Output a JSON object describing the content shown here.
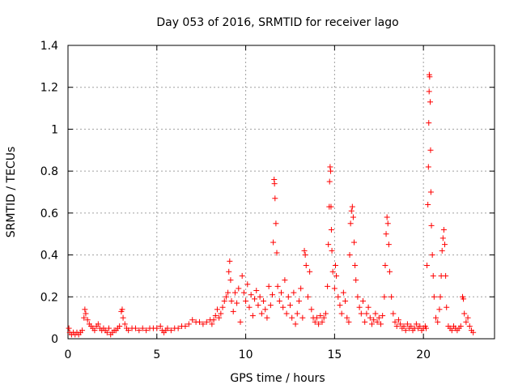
{
  "chart_data": {
    "type": "scatter",
    "title": "Day 053 of 2016, SRMTID for receiver lago",
    "xlabel": "GPS time / hours",
    "ylabel": "SRMTID / TECUs",
    "xlim": [
      0,
      24
    ],
    "ylim": [
      0,
      1.4
    ],
    "x_ticks": [
      0,
      5,
      10,
      15,
      20
    ],
    "x_tick_labels": [
      "0",
      "5",
      "10",
      "15",
      "20"
    ],
    "y_ticks": [
      0,
      0.2,
      0.4,
      0.6,
      0.8,
      1.0,
      1.2,
      1.4
    ],
    "y_tick_labels": [
      "0",
      "0.2",
      "0.4",
      "0.6",
      "0.8",
      "1",
      "1.2",
      "1.4"
    ],
    "grid": true,
    "marker": "+",
    "series_color": "#ff0000",
    "series": [
      {
        "name": "SRMTID",
        "points": [
          [
            0.05,
            0.05
          ],
          [
            0.1,
            0.03
          ],
          [
            0.2,
            0.02
          ],
          [
            0.3,
            0.03
          ],
          [
            0.4,
            0.02
          ],
          [
            0.5,
            0.03
          ],
          [
            0.6,
            0.02
          ],
          [
            0.7,
            0.03
          ],
          [
            0.8,
            0.04
          ],
          [
            0.9,
            0.1
          ],
          [
            0.95,
            0.14
          ],
          [
            1.0,
            0.12
          ],
          [
            1.1,
            0.09
          ],
          [
            1.2,
            0.07
          ],
          [
            1.3,
            0.06
          ],
          [
            1.4,
            0.05
          ],
          [
            1.5,
            0.04
          ],
          [
            1.6,
            0.06
          ],
          [
            1.7,
            0.07
          ],
          [
            1.8,
            0.05
          ],
          [
            1.9,
            0.04
          ],
          [
            2.0,
            0.05
          ],
          [
            2.1,
            0.04
          ],
          [
            2.2,
            0.03
          ],
          [
            2.3,
            0.05
          ],
          [
            2.4,
            0.02
          ],
          [
            2.5,
            0.03
          ],
          [
            2.6,
            0.04
          ],
          [
            2.7,
            0.04
          ],
          [
            2.8,
            0.05
          ],
          [
            2.9,
            0.06
          ],
          [
            3.0,
            0.13
          ],
          [
            3.05,
            0.14
          ],
          [
            3.1,
            0.1
          ],
          [
            3.2,
            0.07
          ],
          [
            3.3,
            0.05
          ],
          [
            3.4,
            0.04
          ],
          [
            3.6,
            0.05
          ],
          [
            3.8,
            0.05
          ],
          [
            4.0,
            0.04
          ],
          [
            4.2,
            0.05
          ],
          [
            4.4,
            0.04
          ],
          [
            4.6,
            0.05
          ],
          [
            4.8,
            0.05
          ],
          [
            5.0,
            0.05
          ],
          [
            5.2,
            0.06
          ],
          [
            5.3,
            0.04
          ],
          [
            5.4,
            0.03
          ],
          [
            5.5,
            0.04
          ],
          [
            5.6,
            0.05
          ],
          [
            5.8,
            0.04
          ],
          [
            6.0,
            0.05
          ],
          [
            6.2,
            0.05
          ],
          [
            6.4,
            0.06
          ],
          [
            6.6,
            0.06
          ],
          [
            6.8,
            0.07
          ],
          [
            7.0,
            0.09
          ],
          [
            7.2,
            0.08
          ],
          [
            7.4,
            0.08
          ],
          [
            7.6,
            0.07
          ],
          [
            7.8,
            0.08
          ],
          [
            8.0,
            0.09
          ],
          [
            8.1,
            0.07
          ],
          [
            8.2,
            0.09
          ],
          [
            8.3,
            0.11
          ],
          [
            8.4,
            0.14
          ],
          [
            8.5,
            0.1
          ],
          [
            8.6,
            0.12
          ],
          [
            8.7,
            0.15
          ],
          [
            8.8,
            0.18
          ],
          [
            8.9,
            0.2
          ],
          [
            9.0,
            0.22
          ],
          [
            9.05,
            0.32
          ],
          [
            9.1,
            0.37
          ],
          [
            9.15,
            0.28
          ],
          [
            9.2,
            0.18
          ],
          [
            9.3,
            0.13
          ],
          [
            9.4,
            0.22
          ],
          [
            9.5,
            0.17
          ],
          [
            9.6,
            0.24
          ],
          [
            9.7,
            0.08
          ],
          [
            9.8,
            0.3
          ],
          [
            9.9,
            0.22
          ],
          [
            10.0,
            0.18
          ],
          [
            10.1,
            0.26
          ],
          [
            10.2,
            0.15
          ],
          [
            10.3,
            0.21
          ],
          [
            10.4,
            0.11
          ],
          [
            10.5,
            0.19
          ],
          [
            10.6,
            0.23
          ],
          [
            10.7,
            0.16
          ],
          [
            10.8,
            0.2
          ],
          [
            10.9,
            0.12
          ],
          [
            11.0,
            0.18
          ],
          [
            11.1,
            0.14
          ],
          [
            11.2,
            0.1
          ],
          [
            11.3,
            0.25
          ],
          [
            11.4,
            0.16
          ],
          [
            11.5,
            0.21
          ],
          [
            11.55,
            0.46
          ],
          [
            11.6,
            0.76
          ],
          [
            11.62,
            0.74
          ],
          [
            11.65,
            0.67
          ],
          [
            11.7,
            0.55
          ],
          [
            11.75,
            0.41
          ],
          [
            11.8,
            0.25
          ],
          [
            11.9,
            0.18
          ],
          [
            12.0,
            0.22
          ],
          [
            12.1,
            0.15
          ],
          [
            12.2,
            0.28
          ],
          [
            12.3,
            0.12
          ],
          [
            12.4,
            0.2
          ],
          [
            12.5,
            0.16
          ],
          [
            12.6,
            0.1
          ],
          [
            12.7,
            0.22
          ],
          [
            12.8,
            0.07
          ],
          [
            12.9,
            0.12
          ],
          [
            13.0,
            0.18
          ],
          [
            13.1,
            0.24
          ],
          [
            13.2,
            0.1
          ],
          [
            13.3,
            0.42
          ],
          [
            13.35,
            0.4
          ],
          [
            13.4,
            0.35
          ],
          [
            13.5,
            0.2
          ],
          [
            13.6,
            0.32
          ],
          [
            13.7,
            0.14
          ],
          [
            13.8,
            0.1
          ],
          [
            13.9,
            0.08
          ],
          [
            14.0,
            0.1
          ],
          [
            14.1,
            0.07
          ],
          [
            14.2,
            0.11
          ],
          [
            14.3,
            0.08
          ],
          [
            14.4,
            0.1
          ],
          [
            14.5,
            0.12
          ],
          [
            14.6,
            0.25
          ],
          [
            14.65,
            0.45
          ],
          [
            14.7,
            0.63
          ],
          [
            14.72,
            0.75
          ],
          [
            14.75,
            0.82
          ],
          [
            14.78,
            0.8
          ],
          [
            14.8,
            0.63
          ],
          [
            14.82,
            0.52
          ],
          [
            14.85,
            0.42
          ],
          [
            14.9,
            0.32
          ],
          [
            15.0,
            0.24
          ],
          [
            15.05,
            0.35
          ],
          [
            15.1,
            0.3
          ],
          [
            15.2,
            0.2
          ],
          [
            15.3,
            0.16
          ],
          [
            15.4,
            0.12
          ],
          [
            15.5,
            0.22
          ],
          [
            15.6,
            0.18
          ],
          [
            15.7,
            0.1
          ],
          [
            15.8,
            0.08
          ],
          [
            15.85,
            0.4
          ],
          [
            15.9,
            0.55
          ],
          [
            15.95,
            0.61
          ],
          [
            16.0,
            0.63
          ],
          [
            16.05,
            0.58
          ],
          [
            16.1,
            0.46
          ],
          [
            16.15,
            0.35
          ],
          [
            16.2,
            0.28
          ],
          [
            16.3,
            0.2
          ],
          [
            16.4,
            0.15
          ],
          [
            16.5,
            0.12
          ],
          [
            16.6,
            0.18
          ],
          [
            16.7,
            0.08
          ],
          [
            16.8,
            0.12
          ],
          [
            16.9,
            0.15
          ],
          [
            17.0,
            0.1
          ],
          [
            17.1,
            0.07
          ],
          [
            17.2,
            0.09
          ],
          [
            17.3,
            0.12
          ],
          [
            17.4,
            0.08
          ],
          [
            17.5,
            0.1
          ],
          [
            17.6,
            0.07
          ],
          [
            17.7,
            0.11
          ],
          [
            17.8,
            0.2
          ],
          [
            17.85,
            0.35
          ],
          [
            17.9,
            0.5
          ],
          [
            17.95,
            0.58
          ],
          [
            18.0,
            0.55
          ],
          [
            18.05,
            0.45
          ],
          [
            18.1,
            0.32
          ],
          [
            18.2,
            0.2
          ],
          [
            18.3,
            0.12
          ],
          [
            18.4,
            0.08
          ],
          [
            18.5,
            0.06
          ],
          [
            18.6,
            0.09
          ],
          [
            18.7,
            0.07
          ],
          [
            18.8,
            0.05
          ],
          [
            18.9,
            0.06
          ],
          [
            19.0,
            0.04
          ],
          [
            19.1,
            0.07
          ],
          [
            19.2,
            0.05
          ],
          [
            19.3,
            0.06
          ],
          [
            19.4,
            0.04
          ],
          [
            19.5,
            0.05
          ],
          [
            19.6,
            0.07
          ],
          [
            19.7,
            0.05
          ],
          [
            19.8,
            0.06
          ],
          [
            19.9,
            0.04
          ],
          [
            20.0,
            0.05
          ],
          [
            20.1,
            0.06
          ],
          [
            20.15,
            0.05
          ],
          [
            20.2,
            0.35
          ],
          [
            20.25,
            0.64
          ],
          [
            20.28,
            0.82
          ],
          [
            20.3,
            1.03
          ],
          [
            20.32,
            1.18
          ],
          [
            20.33,
            1.26
          ],
          [
            20.35,
            1.25
          ],
          [
            20.38,
            1.13
          ],
          [
            20.4,
            0.9
          ],
          [
            20.42,
            0.7
          ],
          [
            20.45,
            0.54
          ],
          [
            20.5,
            0.4
          ],
          [
            20.55,
            0.3
          ],
          [
            20.6,
            0.2
          ],
          [
            20.7,
            0.1
          ],
          [
            20.8,
            0.08
          ],
          [
            20.9,
            0.14
          ],
          [
            20.95,
            0.2
          ],
          [
            21.0,
            0.3
          ],
          [
            21.05,
            0.42
          ],
          [
            21.1,
            0.48
          ],
          [
            21.15,
            0.52
          ],
          [
            21.2,
            0.45
          ],
          [
            21.25,
            0.3
          ],
          [
            21.3,
            0.15
          ],
          [
            21.4,
            0.06
          ],
          [
            21.5,
            0.05
          ],
          [
            21.6,
            0.04
          ],
          [
            21.7,
            0.06
          ],
          [
            21.8,
            0.05
          ],
          [
            21.9,
            0.04
          ],
          [
            22.0,
            0.05
          ],
          [
            22.1,
            0.06
          ],
          [
            22.2,
            0.2
          ],
          [
            22.25,
            0.19
          ],
          [
            22.3,
            0.12
          ],
          [
            22.4,
            0.08
          ],
          [
            22.5,
            0.1
          ],
          [
            22.6,
            0.06
          ],
          [
            22.7,
            0.04
          ],
          [
            22.8,
            0.03
          ]
        ]
      }
    ]
  }
}
